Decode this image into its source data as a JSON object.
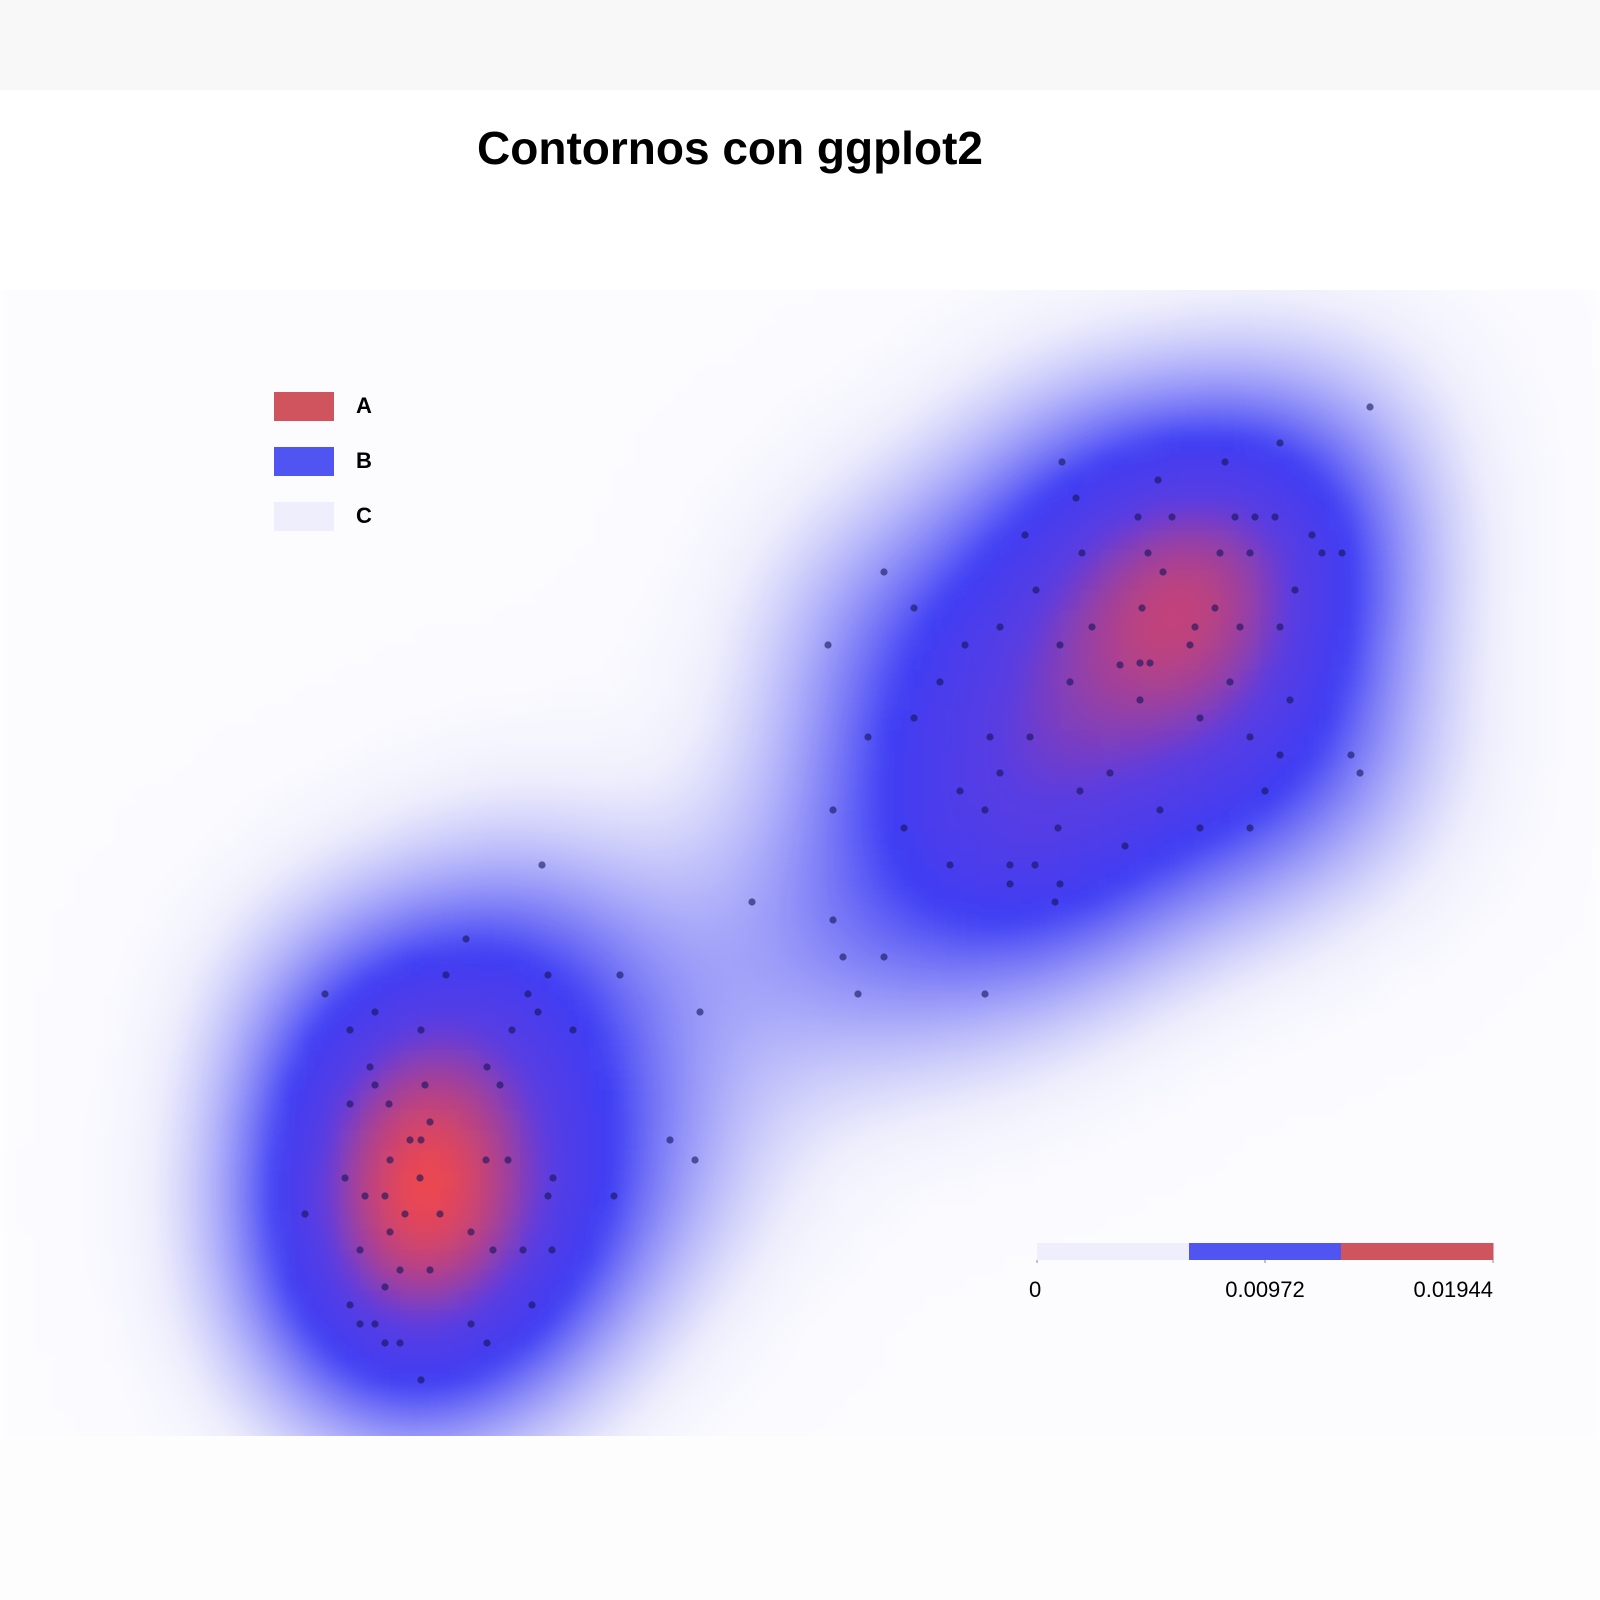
{
  "chart_data": {
    "type": "density",
    "title": "Contornos con ggplot2",
    "xlim": [
      0,
      150
    ],
    "ylim": [
      0,
      115
    ],
    "series": [
      {
        "color": "#14145a",
        "x": [
          131,
          122,
          100.2,
          116.5,
          109.8,
          101.6,
          107.8,
          111.2,
          117.5,
          119.5,
          121.5,
          96.5,
          125.2,
          102.2,
          108.8,
          116,
          119,
          126.2,
          128.2,
          82.4,
          110.3,
          97.6,
          123.5,
          85.4,
          108.2,
          115.5,
          94,
          103.2,
          113.5,
          118,
          122,
          90.5,
          100,
          113,
          109,
          108,
          106,
          88,
          101,
          117,
          108,
          123,
          85.4,
          114,
          93,
          97,
          119,
          122,
          94,
          105,
          130,
          90,
          102,
          120.5,
          92.5,
          110,
          114,
          99.8,
          119,
          106.5,
          84.4,
          89,
          95,
          97.5,
          100,
          95,
          99.5,
          76.8,
          77.3,
          80.8,
          129.1,
          48.2,
          69.2,
          77.3,
          78.3,
          82.4,
          79.8,
          92.5,
          64,
          61,
          63.5,
          40.6,
          38.6,
          48.8,
          56,
          26.5,
          46.8,
          31.5,
          47.8,
          29,
          36.1,
          45.2,
          51.3,
          31,
          42.7,
          31.5,
          36.5,
          44,
          32.9,
          29,
          37,
          35,
          36.1,
          33,
          42.6,
          44.8,
          28.5,
          36,
          49.3,
          30.5,
          32.5,
          48.8,
          55.4,
          24.5,
          34.5,
          38,
          33,
          41.1,
          30,
          43.3,
          46.3,
          49.2,
          34,
          37,
          32.5,
          29,
          47.2,
          30,
          31.5,
          41.1,
          32.5,
          34,
          42.7,
          36.1
        ],
        "y": [
          103.3,
          99.7,
          97.8,
          97.8,
          96,
          94.2,
          92.3,
          92.3,
          92.3,
          92.3,
          92.3,
          90.5,
          90.5,
          88.7,
          88.7,
          88.7,
          88.7,
          88.7,
          88.7,
          86.8,
          86.8,
          85,
          85,
          83.2,
          83.2,
          83.2,
          81.3,
          81.3,
          81.3,
          81.3,
          81.3,
          79.5,
          79.5,
          79.5,
          77.7,
          77.7,
          77.5,
          75.8,
          75.8,
          75.8,
          74,
          74,
          72.2,
          72.2,
          70.3,
          70.3,
          70.3,
          68.5,
          66.7,
          66.7,
          66.7,
          64.9,
          64.9,
          64.9,
          63,
          63,
          61.2,
          61.2,
          61.2,
          59.4,
          61.2,
          57.5,
          57.5,
          57.5,
          55.6,
          55.6,
          53.8,
          79.5,
          63,
          70.3,
          68.5,
          57.5,
          53.8,
          52,
          48.3,
          48.3,
          44.6,
          44.6,
          42.8,
          30,
          28,
          50.1,
          46.5,
          46.5,
          46.5,
          44.6,
          44.6,
          42.8,
          42.8,
          41,
          41,
          41,
          41,
          37.3,
          37.3,
          35.5,
          35.5,
          35.5,
          33.6,
          33.6,
          31.8,
          30,
          30,
          28,
          28,
          28,
          26.2,
          26.2,
          26.2,
          24.4,
          24.4,
          24.4,
          24.4,
          22.6,
          22.6,
          22.6,
          20.8,
          20.8,
          19,
          19,
          19,
          19,
          17,
          17,
          15.3,
          13.5,
          13.5,
          11.6,
          11.6,
          11.6,
          9.7,
          9.7,
          9.7,
          6
        ]
      }
    ],
    "legend": {
      "position": "upper left",
      "entries": [
        {
          "name": "A",
          "color": "#d0545e"
        },
        {
          "name": "B",
          "color": "#5055f2"
        },
        {
          "name": "C",
          "color": "#eeeefc"
        }
      ]
    },
    "colorbar": {
      "lim": [
        0,
        0.01944
      ],
      "ticks": [
        0,
        0.00972,
        0.01944
      ]
    }
  }
}
